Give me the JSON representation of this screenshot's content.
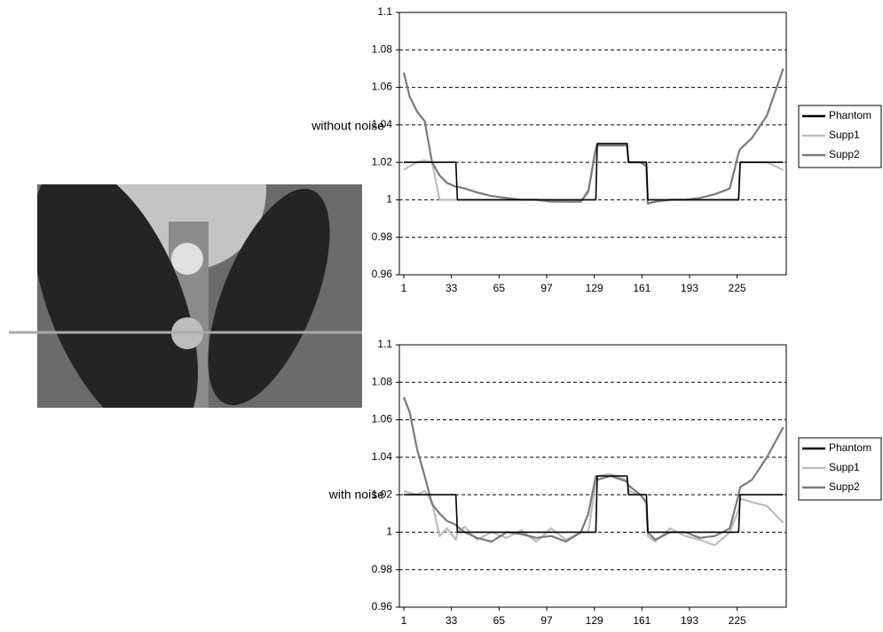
{
  "chart_data": [
    {
      "type": "line",
      "title": "without noise",
      "x": [
        1,
        5,
        10,
        15,
        20,
        25,
        30,
        36,
        37,
        42,
        50,
        60,
        70,
        80,
        90,
        100,
        110,
        120,
        125,
        130,
        131,
        140,
        151,
        152,
        160,
        164,
        165,
        170,
        180,
        190,
        200,
        210,
        220,
        226,
        227,
        235,
        245,
        256
      ],
      "series": [
        {
          "name": "Phantom",
          "color": "#000000",
          "values": [
            1.02,
            1.02,
            1.02,
            1.02,
            1.02,
            1.02,
            1.02,
            1.02,
            1,
            1,
            1,
            1,
            1,
            1,
            1,
            1,
            1,
            1,
            1,
            1,
            1.03,
            1.03,
            1.03,
            1.02,
            1.02,
            1.02,
            1,
            1,
            1,
            1,
            1,
            1,
            1,
            1,
            1.02,
            1.02,
            1.02,
            1.02
          ]
        },
        {
          "name": "Supp1",
          "color": "#bdbdbd",
          "values": [
            1.016,
            1.018,
            1.02,
            1.021,
            1.02,
            1.0,
            1.0,
            1.0,
            1.0,
            1.0,
            1.0,
            1.0,
            1.0,
            1.0,
            1.0,
            1.0,
            0.999,
            0.999,
            1.004,
            1.028,
            1.03,
            1.03,
            1.03,
            1.02,
            1.02,
            1.019,
            0.998,
            0.999,
            1.0,
            1.0,
            1.0,
            1.0,
            1.0,
            1.0,
            1.02,
            1.02,
            1.02,
            1.016
          ]
        },
        {
          "name": "Supp2",
          "color": "#7a7a7a",
          "values": [
            1.068,
            1.055,
            1.047,
            1.042,
            1.02,
            1.013,
            1.009,
            1.007,
            1.007,
            1.006,
            1.004,
            1.002,
            1.001,
            1.0,
            1.0,
            0.999,
            0.999,
            0.999,
            1.005,
            1.027,
            1.029,
            1.029,
            1.029,
            1.02,
            1.02,
            1.018,
            0.998,
            0.999,
            1.0,
            1.0,
            1.001,
            1.003,
            1.006,
            1.025,
            1.027,
            1.033,
            1.045,
            1.07
          ]
        }
      ],
      "xlim": [
        -2,
        258
      ],
      "xticks": [
        1,
        33,
        65,
        97,
        129,
        161,
        193,
        225
      ],
      "ylim": [
        0.96,
        1.1
      ],
      "yticks": [
        0.96,
        0.98,
        1,
        1.02,
        1.04,
        1.06,
        1.08,
        1.1
      ],
      "grid": true,
      "legend": "right"
    },
    {
      "type": "line",
      "title": "with noise",
      "x": [
        1,
        5,
        10,
        15,
        20,
        25,
        30,
        36,
        37,
        42,
        50,
        60,
        70,
        80,
        90,
        100,
        110,
        120,
        125,
        130,
        131,
        140,
        151,
        152,
        160,
        164,
        165,
        170,
        180,
        190,
        200,
        210,
        220,
        226,
        227,
        235,
        245,
        256
      ],
      "series": [
        {
          "name": "Phantom",
          "color": "#000000",
          "values": [
            1.02,
            1.02,
            1.02,
            1.02,
            1.02,
            1.02,
            1.02,
            1.02,
            1,
            1,
            1,
            1,
            1,
            1,
            1,
            1,
            1,
            1,
            1,
            1,
            1.03,
            1.03,
            1.03,
            1.02,
            1.02,
            1.02,
            1,
            1,
            1,
            1,
            1,
            1,
            1,
            1,
            1.02,
            1.02,
            1.02,
            1.02
          ]
        },
        {
          "name": "Supp1",
          "color": "#bdbdbd",
          "values": [
            1.022,
            1.021,
            1.02,
            1.022,
            1.016,
            0.998,
            1.002,
            0.996,
            1.0,
            1.003,
            0.996,
            1.0,
            0.997,
            1.001,
            0.995,
            1.002,
            0.996,
            1.0,
            1.0,
            1.027,
            1.03,
            1.031,
            1.028,
            1.022,
            1.02,
            1.015,
            0.998,
            0.995,
            1.002,
            0.998,
            0.996,
            0.993,
            1.0,
            1.012,
            1.018,
            1.016,
            1.014,
            1.005
          ]
        },
        {
          "name": "Supp2",
          "color": "#7a7a7a",
          "values": [
            1.072,
            1.064,
            1.044,
            1.03,
            1.015,
            1.01,
            1.006,
            1.004,
            1.003,
            1.0,
            0.997,
            0.995,
            1.0,
            0.999,
            0.997,
            0.998,
            0.995,
            1.0,
            1.01,
            1.03,
            1.028,
            1.03,
            1.027,
            1.025,
            1.02,
            1.016,
            1.0,
            0.996,
            1.0,
            1.0,
            0.997,
            0.998,
            1.002,
            1.02,
            1.024,
            1.028,
            1.04,
            1.056
          ]
        }
      ],
      "xlim": [
        -2,
        258
      ],
      "xticks": [
        1,
        33,
        65,
        97,
        129,
        161,
        193,
        225
      ],
      "ylim": [
        0.96,
        1.1
      ],
      "yticks": [
        0.96,
        0.98,
        1,
        1.02,
        1.04,
        1.06,
        1.08,
        1.1
      ],
      "grid": true,
      "legend": "right"
    }
  ]
}
